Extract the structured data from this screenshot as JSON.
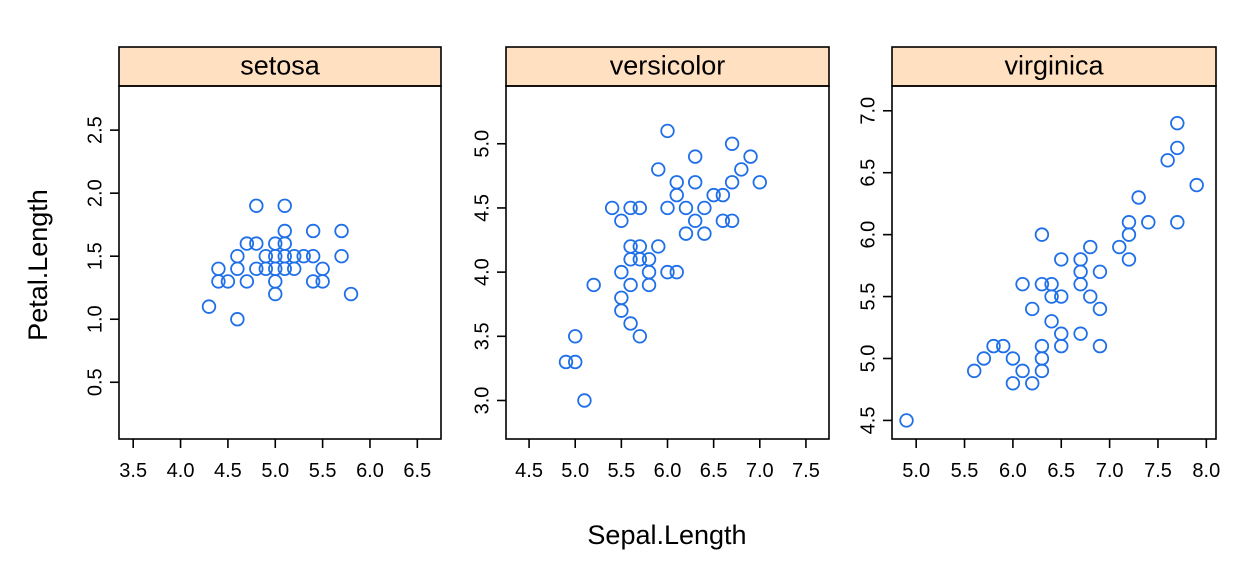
{
  "chart_data": {
    "type": "scatter",
    "xlabel": "Sepal.Length",
    "ylabel": "Petal.Length",
    "point_color": "#1f6fe8",
    "strip_color": "#ffe0c0",
    "panels": [
      {
        "name": "setosa",
        "xlim": [
          3.35,
          6.75
        ],
        "ylim": [
          0.05,
          2.85
        ],
        "xticks": [
          "3.5",
          "4.0",
          "4.5",
          "5.0",
          "5.5",
          "6.0",
          "6.5"
        ],
        "yticks": [
          "0.5",
          "1.0",
          "1.5",
          "2.0",
          "2.5"
        ],
        "points": [
          [
            4.3,
            1.1
          ],
          [
            4.4,
            1.4
          ],
          [
            4.4,
            1.3
          ],
          [
            4.5,
            1.3
          ],
          [
            4.6,
            1.0
          ],
          [
            4.6,
            1.4
          ],
          [
            4.6,
            1.5
          ],
          [
            4.7,
            1.6
          ],
          [
            4.7,
            1.3
          ],
          [
            4.8,
            1.9
          ],
          [
            4.8,
            1.6
          ],
          [
            4.8,
            1.4
          ],
          [
            4.9,
            1.5
          ],
          [
            4.9,
            1.4
          ],
          [
            5.0,
            1.6
          ],
          [
            5.0,
            1.5
          ],
          [
            5.0,
            1.4
          ],
          [
            5.0,
            1.3
          ],
          [
            5.0,
            1.2
          ],
          [
            5.1,
            1.9
          ],
          [
            5.1,
            1.7
          ],
          [
            5.1,
            1.6
          ],
          [
            5.1,
            1.5
          ],
          [
            5.1,
            1.4
          ],
          [
            5.2,
            1.5
          ],
          [
            5.2,
            1.4
          ],
          [
            5.3,
            1.5
          ],
          [
            5.4,
            1.7
          ],
          [
            5.4,
            1.5
          ],
          [
            5.4,
            1.3
          ],
          [
            5.5,
            1.4
          ],
          [
            5.5,
            1.3
          ],
          [
            5.7,
            1.7
          ],
          [
            5.7,
            1.5
          ],
          [
            5.8,
            1.2
          ]
        ]
      },
      {
        "name": "versicolor",
        "xlim": [
          4.25,
          7.75
        ],
        "ylim": [
          2.7,
          5.45
        ],
        "xticks": [
          "4.5",
          "5.0",
          "5.5",
          "6.0",
          "6.5",
          "7.0",
          "7.5"
        ],
        "yticks": [
          "3.0",
          "3.5",
          "4.0",
          "4.5",
          "5.0"
        ],
        "points": [
          [
            4.9,
            3.3
          ],
          [
            5.0,
            3.5
          ],
          [
            5.0,
            3.3
          ],
          [
            5.1,
            3.0
          ],
          [
            5.2,
            3.9
          ],
          [
            5.4,
            4.5
          ],
          [
            5.5,
            4.4
          ],
          [
            5.5,
            4.0
          ],
          [
            5.5,
            3.8
          ],
          [
            5.5,
            3.7
          ],
          [
            5.6,
            4.5
          ],
          [
            5.6,
            4.2
          ],
          [
            5.6,
            4.1
          ],
          [
            5.6,
            3.9
          ],
          [
            5.6,
            3.6
          ],
          [
            5.7,
            4.5
          ],
          [
            5.7,
            4.2
          ],
          [
            5.7,
            4.1
          ],
          [
            5.7,
            3.5
          ],
          [
            5.8,
            4.1
          ],
          [
            5.8,
            4.0
          ],
          [
            5.8,
            3.9
          ],
          [
            5.9,
            4.8
          ],
          [
            5.9,
            4.2
          ],
          [
            6.0,
            5.1
          ],
          [
            6.0,
            4.5
          ],
          [
            6.0,
            4.0
          ],
          [
            6.1,
            4.7
          ],
          [
            6.1,
            4.6
          ],
          [
            6.1,
            4.0
          ],
          [
            6.2,
            4.5
          ],
          [
            6.2,
            4.3
          ],
          [
            6.3,
            4.9
          ],
          [
            6.3,
            4.7
          ],
          [
            6.3,
            4.4
          ],
          [
            6.4,
            4.5
          ],
          [
            6.4,
            4.3
          ],
          [
            6.5,
            4.6
          ],
          [
            6.6,
            4.6
          ],
          [
            6.6,
            4.4
          ],
          [
            6.7,
            5.0
          ],
          [
            6.7,
            4.7
          ],
          [
            6.7,
            4.4
          ],
          [
            6.8,
            4.8
          ],
          [
            6.9,
            4.9
          ],
          [
            7.0,
            4.7
          ]
        ]
      },
      {
        "name": "virginica",
        "xlim": [
          4.75,
          8.1
        ],
        "ylim": [
          4.35,
          7.2
        ],
        "xticks": [
          "5.0",
          "5.5",
          "6.0",
          "6.5",
          "7.0",
          "7.5",
          "8.0"
        ],
        "yticks": [
          "4.5",
          "5.0",
          "5.5",
          "6.0",
          "6.5",
          "7.0"
        ],
        "points": [
          [
            4.9,
            4.5
          ],
          [
            5.6,
            4.9
          ],
          [
            5.7,
            5.0
          ],
          [
            5.8,
            5.1
          ],
          [
            5.9,
            5.1
          ],
          [
            6.0,
            5.0
          ],
          [
            6.0,
            4.8
          ],
          [
            6.1,
            5.6
          ],
          [
            6.1,
            4.9
          ],
          [
            6.2,
            5.4
          ],
          [
            6.2,
            4.8
          ],
          [
            6.3,
            6.0
          ],
          [
            6.3,
            5.6
          ],
          [
            6.3,
            5.1
          ],
          [
            6.3,
            5.0
          ],
          [
            6.3,
            4.9
          ],
          [
            6.4,
            5.6
          ],
          [
            6.4,
            5.5
          ],
          [
            6.4,
            5.3
          ],
          [
            6.5,
            5.8
          ],
          [
            6.5,
            5.5
          ],
          [
            6.5,
            5.2
          ],
          [
            6.5,
            5.1
          ],
          [
            6.7,
            5.8
          ],
          [
            6.7,
            5.7
          ],
          [
            6.7,
            5.6
          ],
          [
            6.7,
            5.2
          ],
          [
            6.8,
            5.9
          ],
          [
            6.8,
            5.5
          ],
          [
            6.9,
            5.7
          ],
          [
            6.9,
            5.4
          ],
          [
            6.9,
            5.1
          ],
          [
            7.1,
            5.9
          ],
          [
            7.2,
            6.1
          ],
          [
            7.2,
            6.0
          ],
          [
            7.2,
            5.8
          ],
          [
            7.3,
            6.3
          ],
          [
            7.4,
            6.1
          ],
          [
            7.6,
            6.6
          ],
          [
            7.7,
            6.9
          ],
          [
            7.7,
            6.7
          ],
          [
            7.7,
            6.1
          ],
          [
            7.9,
            6.4
          ]
        ]
      }
    ]
  }
}
